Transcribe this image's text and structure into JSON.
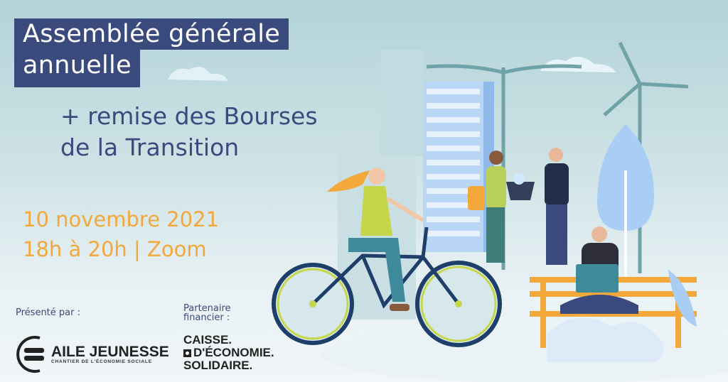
{
  "title": {
    "line1": "Assemblée générale",
    "line2": "annuelle"
  },
  "subtitle": {
    "line1": "+ remise des Bourses",
    "line2": "de la Transition"
  },
  "event": {
    "date": "10 novembre 2021",
    "time": "18h à 20h | Zoom"
  },
  "presenter": {
    "label": "Présenté par :",
    "logo_name": "AILE JEUNESSE",
    "logo_tagline": "CHANTIER DE L'ÉCONOMIE SOCIALE"
  },
  "partner": {
    "label_line1": "Partenaire",
    "label_line2": "financier :",
    "logo_line1": "CAISSE.",
    "logo_line2": "D'ÉCONOMIE.",
    "logo_line3": "SOLIDAIRE."
  },
  "colors": {
    "navy": "#3b4a7c",
    "orange": "#f3a83b",
    "sky": "#b2d3d8"
  }
}
